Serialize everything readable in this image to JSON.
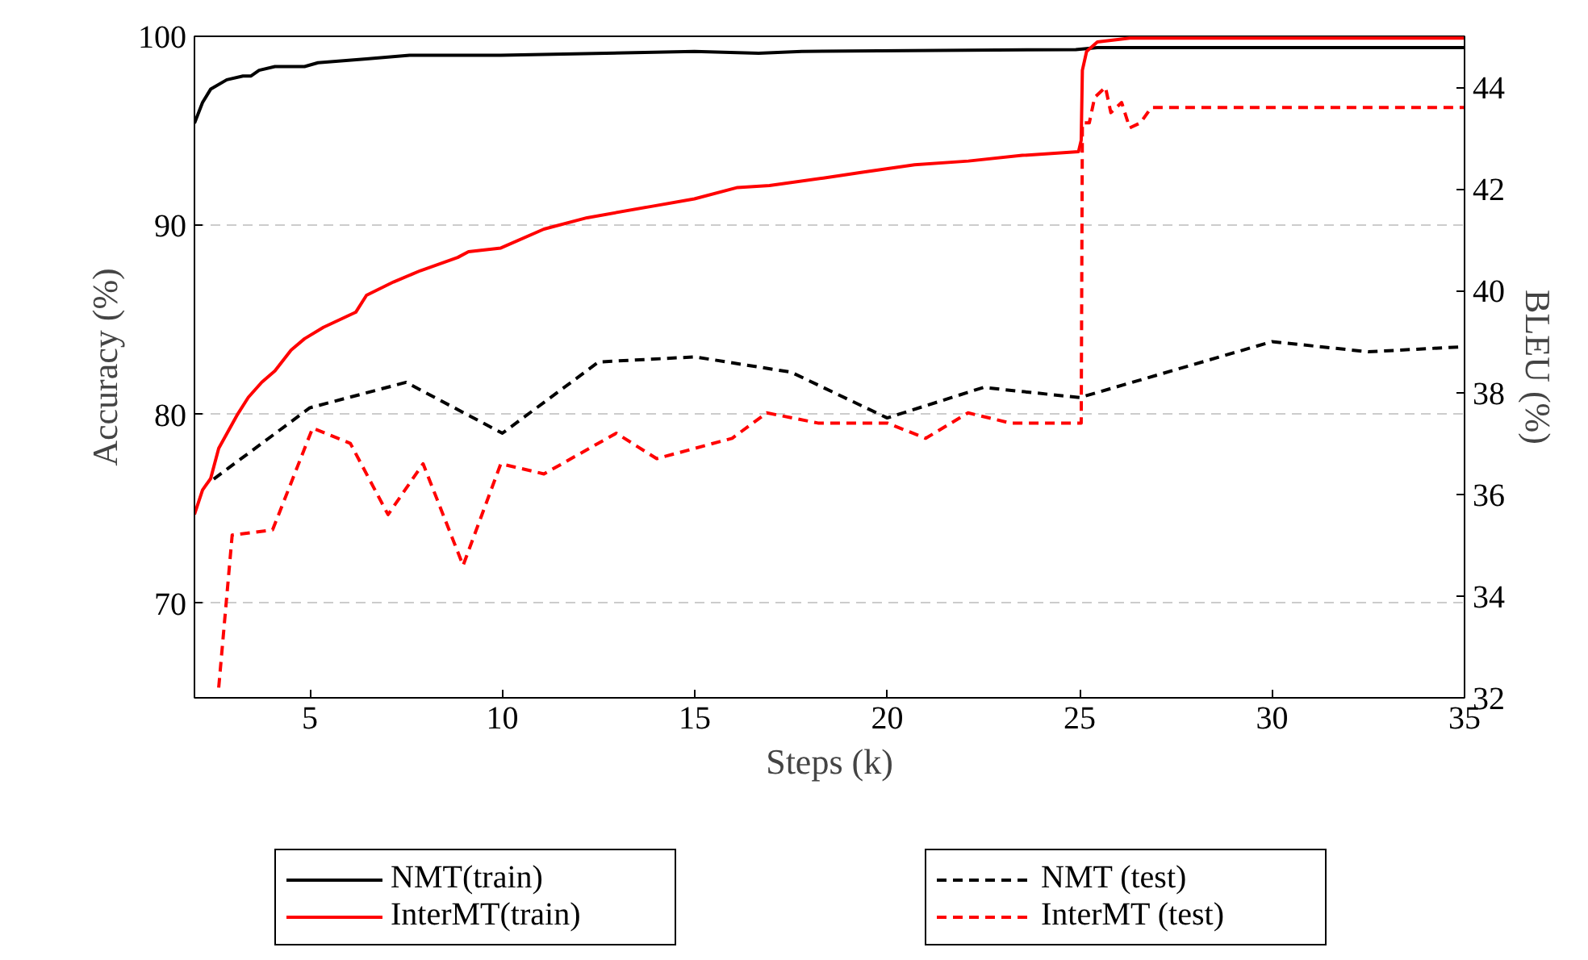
{
  "chart_data": {
    "type": "line",
    "xlabel": "Steps (k)",
    "ylabel": "Accuracy (%)",
    "y2label": "BLEU (%)",
    "xlim": [
      2,
      35
    ],
    "xticks": [
      5,
      10,
      15,
      20,
      25,
      30,
      35
    ],
    "ylim": [
      65,
      100
    ],
    "yticks": [
      70,
      80,
      90,
      100
    ],
    "y2lim": [
      32,
      45
    ],
    "y2ticks": [
      32,
      34,
      36,
      38,
      40,
      42,
      44
    ],
    "grid": "y",
    "legend": "bottom",
    "series": [
      {
        "name": "NMT(train)",
        "color": "#000000",
        "line_style": "solid",
        "x": [
          2,
          2.21,
          2.42,
          2.84,
          3.26,
          3.47,
          3.68,
          4.09,
          4.58,
          4.86,
          5.21,
          6.47,
          7.59,
          9.96,
          14.99,
          16.66,
          17.78,
          24.9,
          25.46,
          35
        ],
        "values": [
          95.4,
          96.5,
          97.2,
          97.7,
          97.9,
          97.9,
          98.2,
          98.4,
          98.4,
          98.4,
          98.6,
          98.8,
          99.0,
          99.0,
          99.2,
          99.1,
          99.2,
          99.3,
          99.4,
          99.4
        ]
      },
      {
        "name": "InterMT(train)",
        "color": "#ff0000",
        "line_style": "solid",
        "x": [
          2,
          2.21,
          2.42,
          2.63,
          3.12,
          3.4,
          3.75,
          4.09,
          4.51,
          4.86,
          5.35,
          6.19,
          6.47,
          7.17,
          7.87,
          8.84,
          9.12,
          9.96,
          11.08,
          12.2,
          13.87,
          14.99,
          16.11,
          16.94,
          18.34,
          19.32,
          20.71,
          22.11,
          23.51,
          24.97,
          25.04,
          25.07,
          25.18,
          25.46,
          26.3,
          35
        ],
        "values": [
          74.7,
          76.0,
          76.6,
          78.2,
          80.0,
          80.9,
          81.7,
          82.3,
          83.4,
          84.0,
          84.6,
          85.4,
          86.3,
          87.0,
          87.6,
          88.3,
          88.6,
          88.8,
          89.8,
          90.4,
          91.0,
          91.4,
          92.0,
          92.1,
          92.5,
          92.8,
          93.2,
          93.4,
          93.7,
          93.9,
          94.5,
          98.2,
          99.2,
          99.7,
          99.9,
          99.9
        ]
      },
      {
        "name": "NMT (test)",
        "color": "#000000",
        "line_style": "dashed",
        "axis": "y2",
        "x": [
          2.5,
          5,
          7.5,
          10,
          12.5,
          15,
          17.5,
          20,
          22.5,
          25,
          30,
          32.5,
          35
        ],
        "values": [
          36.3,
          37.7,
          38.2,
          37.2,
          38.6,
          38.7,
          38.4,
          37.5,
          38.1,
          37.9,
          39.0,
          38.8,
          38.9
        ]
      },
      {
        "name": "InterMT (test)",
        "color": "#ff0000",
        "line_style": "dashed",
        "axis": "y2",
        "x": [
          2.63,
          2.98,
          4.03,
          5.07,
          6.05,
          7.03,
          7.94,
          8.98,
          9.96,
          11.08,
          12.96,
          14.01,
          15.97,
          16.87,
          18.2,
          20.0,
          21.0,
          22.1,
          23.2,
          25.04,
          25.07,
          25.25,
          25.39,
          25.67,
          25.81,
          26.09,
          26.3,
          26.58,
          26.86,
          35
        ],
        "values": [
          32.2,
          35.2,
          35.3,
          37.3,
          37.0,
          35.6,
          36.6,
          34.6,
          36.6,
          36.4,
          37.2,
          36.7,
          37.1,
          37.6,
          37.4,
          37.4,
          37.1,
          37.6,
          37.4,
          37.4,
          43.3,
          43.3,
          43.8,
          44.0,
          43.5,
          43.7,
          43.2,
          43.3,
          43.6,
          43.6
        ]
      }
    ]
  }
}
